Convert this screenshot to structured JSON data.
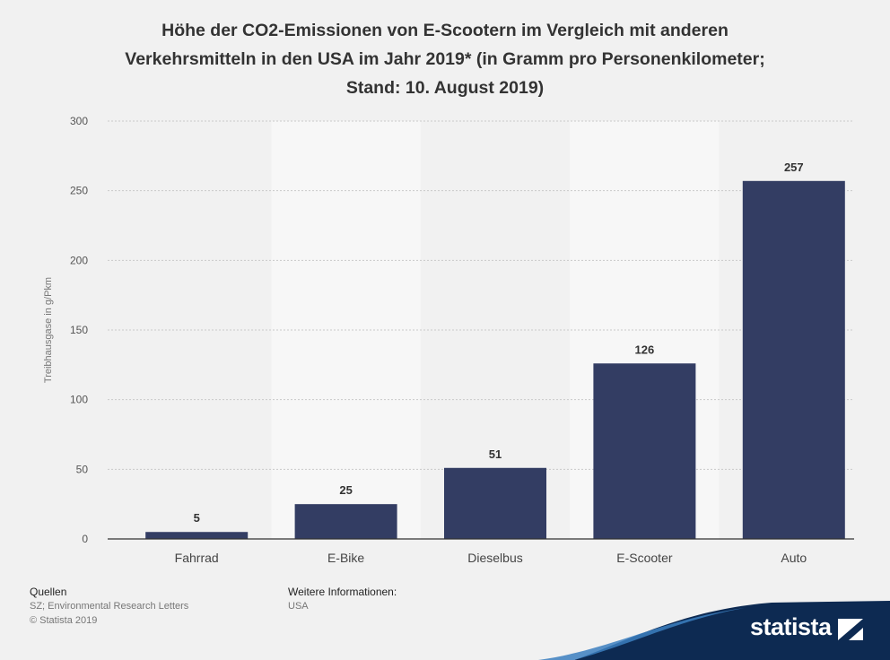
{
  "title_lines": [
    "Höhe der CO2-Emissionen von E-Scootern im Vergleich mit anderen",
    "Verkehrsmitteln in den USA im Jahr 2019* (in Gramm pro Personenkilometer;",
    "Stand: 10. August 2019)"
  ],
  "chart_data": {
    "type": "bar",
    "categories": [
      "Fahrrad",
      "E-Bike",
      "Dieselbus",
      "E-Scooter",
      "Auto"
    ],
    "values": [
      5,
      25,
      51,
      126,
      257
    ],
    "ylabel": "Treibhausgase in g/Pkm",
    "xlabel": "",
    "ylim": [
      0,
      300
    ],
    "yticks": [
      0,
      50,
      100,
      150,
      200,
      250,
      300
    ],
    "grid": true,
    "data_labels": true,
    "bar_color": "#333d63"
  },
  "footer": {
    "sources_label": "Quellen",
    "sources_text": "SZ; Environmental Research Letters",
    "copyright": "© Statista 2019",
    "info_label": "Weitere Informationen:",
    "info_text": "USA"
  },
  "brand": {
    "name": "statista",
    "color": "#0d2a52"
  }
}
